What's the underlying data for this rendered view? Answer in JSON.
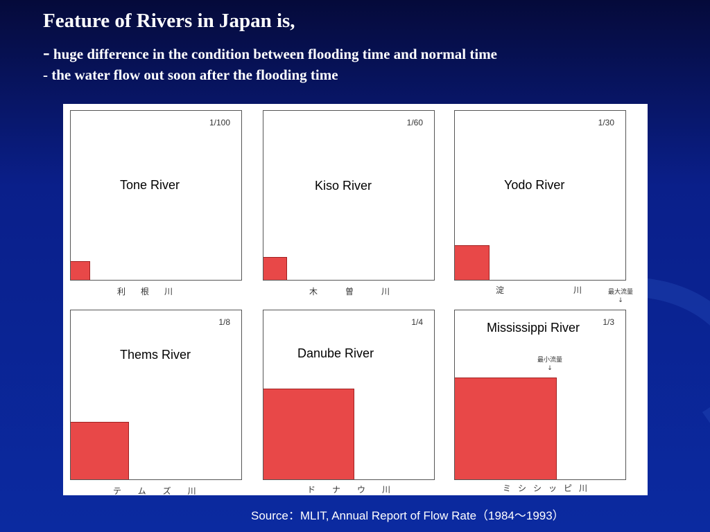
{
  "slide": {
    "title": "Feature of Rivers in Japan is,",
    "bullets": [
      {
        "dash": "-",
        "text": "huge difference in the condition between flooding time and normal time"
      },
      {
        "text": "- the water flow out soon after the flooding time"
      }
    ],
    "source": "Source：MLIT, Annual Report of Flow Rate（1984～1993）"
  },
  "figure": {
    "rivers": [
      {
        "name": "Tone River",
        "ratio": "1/100",
        "ratio_value": 0.01,
        "jp": "利根川"
      },
      {
        "name": "Kiso River",
        "ratio": "1/60",
        "ratio_value": 0.0167,
        "jp": "木曽川"
      },
      {
        "name": "Yodo River",
        "ratio": "1/30",
        "ratio_value": 0.0333,
        "jp": "淀川"
      },
      {
        "name": "Thems River",
        "ratio": "1/8",
        "ratio_value": 0.125,
        "jp": "テムズ川"
      },
      {
        "name": "Danube River",
        "ratio": "1/4",
        "ratio_value": 0.25,
        "jp": "ドナウ川"
      },
      {
        "name": "Mississippi River",
        "ratio": "1/3",
        "ratio_value": 0.333,
        "jp": "ミシシッピ川"
      }
    ],
    "max_flow_label": "最大流量",
    "min_flow_label": "最小流量",
    "colors": {
      "fill": "#e84848",
      "border": "#555555"
    }
  }
}
